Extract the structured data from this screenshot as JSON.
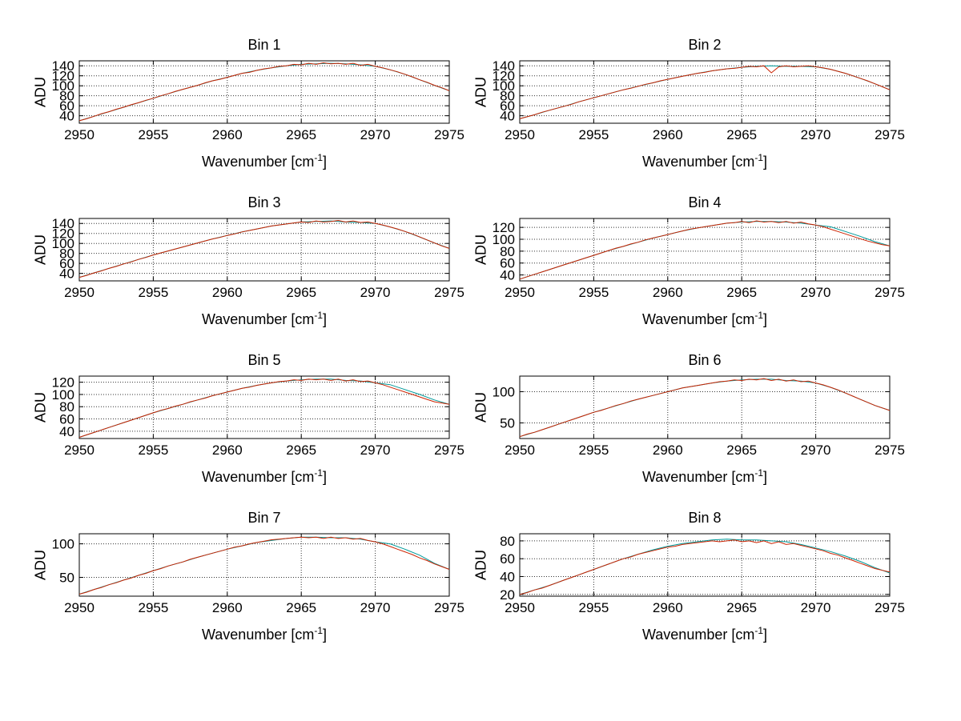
{
  "figure": {
    "background": "#ffffff",
    "ylabel": "ADU",
    "xlabel_full": "Wavenumber [cm⁻¹]"
  },
  "labels": {
    "xlabel_main": "Wavenumber [cm",
    "xlabel_sup": "-1",
    "xlabel_close": "]"
  },
  "colors": {
    "series_red": "#cc2200",
    "series_teal": "#009999",
    "grid": "#333333",
    "axis": "#000000"
  },
  "chart_data": [
    {
      "type": "line",
      "title": "Bin 1",
      "ylabel": "ADU",
      "xlabel": "Wavenumber [cm⁻¹]",
      "xlim": [
        2950,
        2975
      ],
      "ylim": [
        25,
        150
      ],
      "x_ticks": [
        2950,
        2955,
        2960,
        2965,
        2970,
        2975
      ],
      "y_ticks": [
        40,
        60,
        80,
        100,
        120,
        140
      ],
      "x_start": 2950,
      "grid": true,
      "series": [
        {
          "name": "teal",
          "color": "#009999",
          "x_step": 1,
          "values": [
            30,
            39,
            48,
            57,
            66,
            75,
            84,
            93,
            101,
            110,
            117,
            125,
            131,
            136,
            140,
            143,
            144,
            145,
            144,
            142,
            139,
            132,
            123,
            112,
            101,
            90
          ]
        },
        {
          "name": "red",
          "color": "#cc2200",
          "x_step": 0.5,
          "values": [
            30,
            34,
            39,
            44,
            48,
            53,
            57,
            62,
            66,
            71,
            75,
            80,
            84,
            89,
            93,
            97,
            101,
            106,
            110,
            113,
            117,
            121,
            125,
            127,
            131,
            134,
            136,
            139,
            140,
            143,
            142,
            145,
            143,
            146,
            144,
            145,
            143,
            145,
            141,
            143,
            139,
            136,
            132,
            128,
            123,
            118,
            112,
            107,
            101,
            96,
            90
          ]
        }
      ]
    },
    {
      "type": "line",
      "title": "Bin 2",
      "ylabel": "ADU",
      "xlabel": "Wavenumber [cm⁻¹]",
      "xlim": [
        2950,
        2975
      ],
      "ylim": [
        25,
        150
      ],
      "x_ticks": [
        2950,
        2955,
        2960,
        2965,
        2970,
        2975
      ],
      "y_ticks": [
        40,
        60,
        80,
        100,
        120,
        140
      ],
      "x_start": 2950,
      "grid": true,
      "series": [
        {
          "name": "teal",
          "color": "#009999",
          "x_step": 1,
          "values": [
            34,
            42,
            51,
            59,
            68,
            76,
            84,
            92,
            99,
            106,
            113,
            119,
            125,
            130,
            134,
            137,
            139,
            140,
            139,
            139,
            138,
            133,
            125,
            115,
            104,
            92
          ]
        },
        {
          "name": "red",
          "color": "#cc2200",
          "x_step": 0.5,
          "values": [
            34,
            38,
            42,
            47,
            51,
            55,
            59,
            63,
            68,
            72,
            76,
            80,
            84,
            88,
            92,
            95,
            99,
            103,
            106,
            110,
            113,
            116,
            119,
            122,
            125,
            127,
            130,
            132,
            134,
            135,
            137,
            139,
            138,
            140,
            126,
            138,
            140,
            138,
            139,
            140,
            138,
            136,
            133,
            129,
            125,
            120,
            115,
            110,
            104,
            98,
            92
          ]
        }
      ]
    },
    {
      "type": "line",
      "title": "Bin 3",
      "ylabel": "ADU",
      "xlabel": "Wavenumber [cm⁻¹]",
      "xlim": [
        2950,
        2975
      ],
      "ylim": [
        25,
        150
      ],
      "x_ticks": [
        2950,
        2955,
        2960,
        2965,
        2970,
        2975
      ],
      "y_ticks": [
        40,
        60,
        80,
        100,
        120,
        140
      ],
      "x_start": 2950,
      "grid": true,
      "series": [
        {
          "name": "teal",
          "color": "#009999",
          "x_step": 1,
          "values": [
            32,
            41,
            50,
            59,
            68,
            77,
            85,
            93,
            101,
            109,
            116,
            123,
            129,
            135,
            139,
            143,
            144,
            145,
            143,
            142,
            140,
            133,
            124,
            113,
            101,
            90
          ]
        },
        {
          "name": "red",
          "color": "#cc2200",
          "x_step": 0.5,
          "values": [
            32,
            36,
            41,
            45,
            50,
            54,
            59,
            63,
            68,
            72,
            77,
            81,
            85,
            89,
            93,
            97,
            101,
            105,
            109,
            112,
            116,
            119,
            123,
            126,
            129,
            132,
            135,
            137,
            139,
            141,
            143,
            142,
            145,
            143,
            144,
            146,
            143,
            145,
            142,
            143,
            140,
            137,
            133,
            129,
            124,
            119,
            113,
            107,
            101,
            95,
            90
          ]
        }
      ]
    },
    {
      "type": "line",
      "title": "Bin 4",
      "ylabel": "ADU",
      "xlabel": "Wavenumber [cm⁻¹]",
      "xlim": [
        2950,
        2975
      ],
      "ylim": [
        30,
        135
      ],
      "x_ticks": [
        2950,
        2955,
        2960,
        2965,
        2970,
        2975
      ],
      "y_ticks": [
        40,
        60,
        80,
        100,
        120
      ],
      "x_start": 2950,
      "grid": true,
      "series": [
        {
          "name": "teal",
          "color": "#009999",
          "x_step": 1,
          "values": [
            33,
            41,
            49,
            57,
            65,
            73,
            81,
            88,
            95,
            102,
            108,
            114,
            119,
            123,
            127,
            129,
            130,
            130,
            129,
            127,
            124,
            121,
            113,
            105,
            96,
            89
          ]
        },
        {
          "name": "red",
          "color": "#cc2200",
          "x_step": 0.5,
          "values": [
            33,
            37,
            41,
            45,
            49,
            53,
            57,
            61,
            65,
            69,
            73,
            77,
            81,
            85,
            88,
            92,
            95,
            99,
            102,
            105,
            108,
            111,
            114,
            117,
            119,
            121,
            123,
            125,
            127,
            128,
            130,
            128,
            131,
            129,
            130,
            128,
            130,
            127,
            129,
            126,
            124,
            121,
            117,
            113,
            109,
            105,
            101,
            97,
            94,
            91,
            89
          ]
        }
      ]
    },
    {
      "type": "line",
      "title": "Bin 5",
      "ylabel": "ADU",
      "xlabel": "Wavenumber [cm⁻¹]",
      "xlim": [
        2950,
        2975
      ],
      "ylim": [
        28,
        130
      ],
      "x_ticks": [
        2950,
        2955,
        2960,
        2965,
        2970,
        2975
      ],
      "y_ticks": [
        40,
        60,
        80,
        100,
        120
      ],
      "x_start": 2950,
      "grid": true,
      "series": [
        {
          "name": "teal",
          "color": "#009999",
          "x_step": 1,
          "values": [
            30,
            38,
            46,
            54,
            62,
            70,
            77,
            84,
            91,
            98,
            104,
            110,
            115,
            119,
            122,
            124,
            125,
            125,
            123,
            122,
            119,
            116,
            108,
            100,
            91,
            84
          ]
        },
        {
          "name": "red",
          "color": "#cc2200",
          "x_step": 0.5,
          "values": [
            30,
            34,
            38,
            42,
            46,
            50,
            54,
            58,
            62,
            66,
            70,
            74,
            77,
            81,
            84,
            88,
            91,
            94,
            98,
            101,
            104,
            107,
            110,
            112,
            115,
            117,
            119,
            121,
            122,
            124,
            123,
            125,
            124,
            125,
            123,
            125,
            122,
            124,
            121,
            122,
            119,
            116,
            112,
            108,
            104,
            100,
            96,
            92,
            88,
            86,
            84
          ]
        }
      ]
    },
    {
      "type": "line",
      "title": "Bin 6",
      "ylabel": "ADU",
      "xlabel": "Wavenumber [cm⁻¹]",
      "xlim": [
        2950,
        2975
      ],
      "ylim": [
        25,
        125
      ],
      "x_ticks": [
        2950,
        2955,
        2960,
        2965,
        2970,
        2975
      ],
      "y_ticks": [
        50,
        100
      ],
      "x_start": 2950,
      "grid": true,
      "series": [
        {
          "name": "teal",
          "color": "#009999",
          "x_step": 1,
          "values": [
            28,
            35,
            43,
            51,
            59,
            67,
            74,
            81,
            88,
            94,
            100,
            106,
            110,
            114,
            117,
            119,
            120,
            120,
            118,
            117,
            114,
            107,
            98,
            88,
            78,
            70
          ]
        },
        {
          "name": "red",
          "color": "#cc2200",
          "x_step": 0.5,
          "values": [
            28,
            32,
            35,
            39,
            43,
            47,
            51,
            55,
            59,
            63,
            67,
            70,
            74,
            78,
            81,
            85,
            88,
            91,
            94,
            97,
            100,
            103,
            106,
            108,
            110,
            112,
            114,
            116,
            117,
            119,
            118,
            120,
            119,
            121,
            118,
            120,
            117,
            119,
            116,
            117,
            114,
            111,
            107,
            103,
            98,
            93,
            88,
            83,
            78,
            74,
            70
          ]
        }
      ]
    },
    {
      "type": "line",
      "title": "Bin 7",
      "ylabel": "ADU",
      "xlabel": "Wavenumber [cm⁻¹]",
      "xlim": [
        2950,
        2975
      ],
      "ylim": [
        22,
        115
      ],
      "x_ticks": [
        2950,
        2955,
        2960,
        2965,
        2970,
        2975
      ],
      "y_ticks": [
        50,
        100
      ],
      "x_start": 2950,
      "grid": true,
      "series": [
        {
          "name": "teal",
          "color": "#009999",
          "x_step": 1,
          "values": [
            25,
            32,
            39,
            46,
            53,
            60,
            67,
            73,
            80,
            86,
            92,
            97,
            102,
            105,
            108,
            110,
            110,
            109,
            109,
            107,
            103,
            100,
            92,
            83,
            71,
            62
          ]
        },
        {
          "name": "red",
          "color": "#cc2200",
          "x_step": 0.5,
          "values": [
            25,
            28,
            32,
            35,
            39,
            42,
            46,
            49,
            53,
            56,
            60,
            63,
            67,
            70,
            73,
            77,
            80,
            83,
            86,
            89,
            92,
            95,
            97,
            100,
            102,
            104,
            106,
            107,
            108,
            109,
            110,
            109,
            110,
            108,
            110,
            108,
            109,
            107,
            108,
            105,
            103,
            100,
            96,
            92,
            88,
            84,
            79,
            75,
            70,
            66,
            62
          ]
        }
      ]
    },
    {
      "type": "line",
      "title": "Bin 8",
      "ylabel": "ADU",
      "xlabel": "Wavenumber [cm⁻¹]",
      "xlim": [
        2950,
        2975
      ],
      "ylim": [
        18,
        88
      ],
      "x_ticks": [
        2950,
        2955,
        2960,
        2965,
        2970,
        2975
      ],
      "y_ticks": [
        20,
        40,
        60,
        80
      ],
      "x_start": 2950,
      "grid": true,
      "series": [
        {
          "name": "teal",
          "color": "#009999",
          "x_step": 1,
          "values": [
            20,
            25,
            30,
            36,
            42,
            48,
            54,
            60,
            65,
            70,
            74,
            77,
            79,
            81,
            82,
            81,
            81,
            80,
            79,
            76,
            72,
            68,
            63,
            57,
            50,
            44
          ]
        },
        {
          "name": "red",
          "color": "#cc2200",
          "x_step": 0.5,
          "values": [
            20,
            22,
            25,
            27,
            30,
            33,
            36,
            39,
            42,
            45,
            48,
            51,
            54,
            57,
            60,
            62,
            65,
            67,
            69,
            71,
            73,
            74,
            76,
            77,
            78,
            79,
            80,
            79,
            80,
            81,
            79,
            80,
            78,
            80,
            77,
            79,
            76,
            77,
            75,
            73,
            71,
            69,
            66,
            64,
            61,
            58,
            55,
            52,
            49,
            47,
            45
          ]
        }
      ]
    }
  ]
}
